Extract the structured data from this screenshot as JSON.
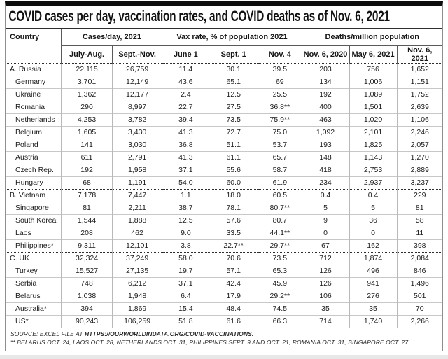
{
  "title": "COVID cases per day, vaccination rates, and COVID deaths as of Nov. 6, 2021",
  "header": {
    "country": "Country",
    "groups": [
      {
        "label": "Cases/day, 2021",
        "cols": [
          "July-Aug.",
          "Sept.-Nov."
        ]
      },
      {
        "label": "Vax rate, % of population 2021",
        "cols": [
          "June 1",
          "Sept. 1",
          "Nov. 4"
        ]
      },
      {
        "label": "Deaths/million population",
        "cols": [
          "Nov. 6, 2020",
          "May 6, 2021",
          "Nov. 6, 2021"
        ]
      }
    ]
  },
  "sections": [
    {
      "rows": [
        {
          "country": "A. Russia",
          "values": [
            "22,115",
            "26,759",
            "11.4",
            "30.1",
            "39.5",
            "203",
            "756",
            "1,652"
          ]
        },
        {
          "country": "Germany",
          "values": [
            "3,701",
            "12,149",
            "43.6",
            "65.1",
            "69",
            "134",
            "1,006",
            "1,151"
          ]
        },
        {
          "country": "Ukraine",
          "values": [
            "1,362",
            "12,177",
            "2.4",
            "12.5",
            "25.5",
            "192",
            "1,089",
            "1,752"
          ]
        },
        {
          "country": "Romania",
          "values": [
            "290",
            "8,997",
            "22.7",
            "27.5",
            "36.8**",
            "400",
            "1,501",
            "2,639"
          ]
        },
        {
          "country": "Netherlands",
          "values": [
            "4,253",
            "3,782",
            "39.4",
            "73.5",
            "75.9**",
            "463",
            "1,020",
            "1,106"
          ]
        },
        {
          "country": "Belgium",
          "values": [
            "1,605",
            "3,430",
            "41.3",
            "72.7",
            "75.0",
            "1,092",
            "2,101",
            "2,246"
          ]
        },
        {
          "country": "Poland",
          "values": [
            "141",
            "3,030",
            "36.8",
            "51.1",
            "53.7",
            "193",
            "1,825",
            "2,057"
          ]
        },
        {
          "country": "Austria",
          "values": [
            "611",
            "2,791",
            "41.3",
            "61.1",
            "65.7",
            "148",
            "1,143",
            "1,270"
          ]
        },
        {
          "country": "Czech Rep.",
          "values": [
            "192",
            "1,958",
            "37.1",
            "55.6",
            "58.7",
            "418",
            "2,753",
            "2,889"
          ]
        },
        {
          "country": "Hungary",
          "values": [
            "68",
            "1,191",
            "54.0",
            "60.0",
            "61.9",
            "234",
            "2,937",
            "3,237"
          ]
        }
      ]
    },
    {
      "rows": [
        {
          "country": "B. Vietnam",
          "values": [
            "7,178",
            "7,447",
            "1.1",
            "18.0",
            "60.5",
            "0.4",
            "0.4",
            "229"
          ]
        },
        {
          "country": "Singapore",
          "values": [
            "81",
            "2,211",
            "38.7",
            "78.1",
            "80.7**",
            "5",
            "5",
            "81"
          ]
        },
        {
          "country": "South Korea",
          "values": [
            "1,544",
            "1,888",
            "12.5",
            "57.6",
            "80.7",
            "9",
            "36",
            "58"
          ]
        },
        {
          "country": "Laos",
          "values": [
            "208",
            "462",
            "9.0",
            "33.5",
            "44.1**",
            "0",
            "0",
            "11"
          ]
        },
        {
          "country": "Philippines*",
          "values": [
            "9,311",
            "12,101",
            "3.8",
            "22.7**",
            "29.7**",
            "67",
            "162",
            "398"
          ]
        }
      ]
    },
    {
      "rows": [
        {
          "country": "C. UK",
          "values": [
            "32,324",
            "37,249",
            "58.0",
            "70.6",
            "73.5",
            "712",
            "1,874",
            "2,084"
          ]
        },
        {
          "country": "Turkey",
          "values": [
            "15,527",
            "27,135",
            "19.7",
            "57.1",
            "65.3",
            "126",
            "496",
            "846"
          ]
        },
        {
          "country": "Serbia",
          "values": [
            "748",
            "6,212",
            "37.1",
            "42.4",
            "45.9",
            "126",
            "941",
            "1,496"
          ]
        },
        {
          "country": "Belarus",
          "values": [
            "1,038",
            "1,948",
            "6.4",
            "17.9",
            "29.2**",
            "106",
            "276",
            "501"
          ]
        },
        {
          "country": "Australia*",
          "values": [
            "394",
            "1,869",
            "15.4",
            "48.4",
            "74.5",
            "35",
            "35",
            "70"
          ]
        },
        {
          "country": "US*",
          "values": [
            "90,243",
            "106,259",
            "51.8",
            "61.6",
            "66.3",
            "714",
            "1,740",
            "2,266"
          ]
        }
      ]
    }
  ],
  "source": {
    "prefix": "SOURCE: EXCEL FILE AT",
    "url": "HTTPS://OURWORLDINDATA.ORG/COVID-VACCINATIONS.",
    "footnote": "** BELARUS OCT. 24, LAOS OCT. 28, NETHERLANDS OCT. 31, PHILIPPINES SEPT. 9 AND OCT. 21, ROMANIA OCT. 31, SINGAPORE OCT. 27."
  },
  "chart_data": {
    "type": "table",
    "title": "COVID cases per day, vaccination rates, and COVID deaths as of Nov. 6, 2021",
    "columns": [
      "Country",
      "Cases/day 2021: July-Aug.",
      "Cases/day 2021: Sept.-Nov.",
      "Vax rate % of population 2021: June 1",
      "Vax rate % of population 2021: Sept. 1",
      "Vax rate % of population 2021: Nov. 4",
      "Deaths/million population: Nov. 6, 2020",
      "Deaths/million population: May 6, 2021",
      "Deaths/million population: Nov. 6, 2021"
    ],
    "rows": [
      [
        "A. Russia",
        22115,
        26759,
        11.4,
        30.1,
        39.5,
        203,
        756,
        1652
      ],
      [
        "Germany",
        3701,
        12149,
        43.6,
        65.1,
        69,
        134,
        1006,
        1151
      ],
      [
        "Ukraine",
        1362,
        12177,
        2.4,
        12.5,
        25.5,
        192,
        1089,
        1752
      ],
      [
        "Romania",
        290,
        8997,
        22.7,
        27.5,
        36.8,
        400,
        1501,
        2639
      ],
      [
        "Netherlands",
        4253,
        3782,
        39.4,
        73.5,
        75.9,
        463,
        1020,
        1106
      ],
      [
        "Belgium",
        1605,
        3430,
        41.3,
        72.7,
        75.0,
        1092,
        2101,
        2246
      ],
      [
        "Poland",
        141,
        3030,
        36.8,
        51.1,
        53.7,
        193,
        1825,
        2057
      ],
      [
        "Austria",
        611,
        2791,
        41.3,
        61.1,
        65.7,
        148,
        1143,
        1270
      ],
      [
        "Czech Rep.",
        192,
        1958,
        37.1,
        55.6,
        58.7,
        418,
        2753,
        2889
      ],
      [
        "Hungary",
        68,
        1191,
        54.0,
        60.0,
        61.9,
        234,
        2937,
        3237
      ],
      [
        "B. Vietnam",
        7178,
        7447,
        1.1,
        18.0,
        60.5,
        0.4,
        0.4,
        229
      ],
      [
        "Singapore",
        81,
        2211,
        38.7,
        78.1,
        80.7,
        5,
        5,
        81
      ],
      [
        "South Korea",
        1544,
        1888,
        12.5,
        57.6,
        80.7,
        9,
        36,
        58
      ],
      [
        "Laos",
        208,
        462,
        9.0,
        33.5,
        44.1,
        0,
        0,
        11
      ],
      [
        "Philippines*",
        9311,
        12101,
        3.8,
        22.7,
        29.7,
        67,
        162,
        398
      ],
      [
        "C. UK",
        32324,
        37249,
        58.0,
        70.6,
        73.5,
        712,
        1874,
        2084
      ],
      [
        "Turkey",
        15527,
        27135,
        19.7,
        57.1,
        65.3,
        126,
        496,
        846
      ],
      [
        "Serbia",
        748,
        6212,
        37.1,
        42.4,
        45.9,
        126,
        941,
        1496
      ],
      [
        "Belarus",
        1038,
        1948,
        6.4,
        17.9,
        29.2,
        106,
        276,
        501
      ],
      [
        "Australia*",
        394,
        1869,
        15.4,
        48.4,
        74.5,
        35,
        35,
        70
      ],
      [
        "US*",
        90243,
        106259,
        51.8,
        61.6,
        66.3,
        714,
        1740,
        2266
      ]
    ]
  }
}
